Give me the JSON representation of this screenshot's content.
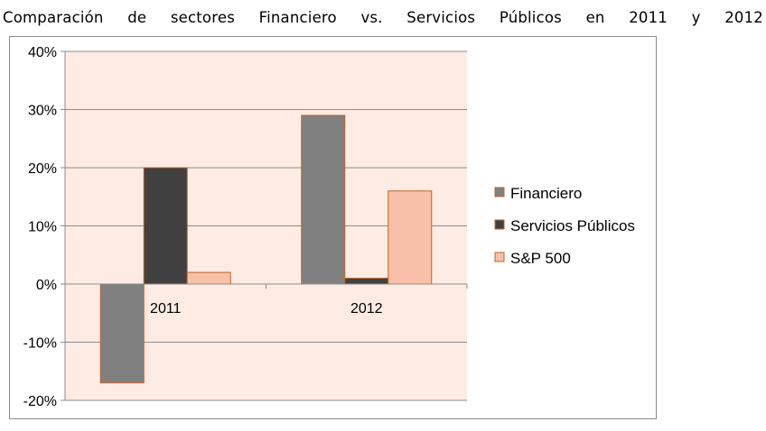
{
  "title": "Comparación de sectores Financiero vs. Servicios Públicos en 2011 y 2012",
  "chart_data": {
    "type": "bar",
    "title": "Comparación de sectores Financiero vs. Servicios Públicos en 2011 y 2012",
    "categories": [
      "2011",
      "2012"
    ],
    "series": [
      {
        "name": "Financiero",
        "values": [
          -17,
          29
        ],
        "color": "#808080"
      },
      {
        "name": "Servicios Públicos",
        "values": [
          20,
          1
        ],
        "color": "#404040"
      },
      {
        "name": "S&P 500",
        "values": [
          2,
          16
        ],
        "color": "#f8c0a8"
      }
    ],
    "ylim": [
      -20,
      40
    ],
    "yticks": [
      40,
      30,
      20,
      10,
      0,
      -10,
      -20
    ],
    "ytick_labels": [
      "40%",
      "30%",
      "20%",
      "10%",
      "0%",
      "-10%",
      "-20%"
    ],
    "plot_background": "#fdebe4",
    "bar_border": "#c0622a",
    "grid": true,
    "legend_position": "right"
  }
}
